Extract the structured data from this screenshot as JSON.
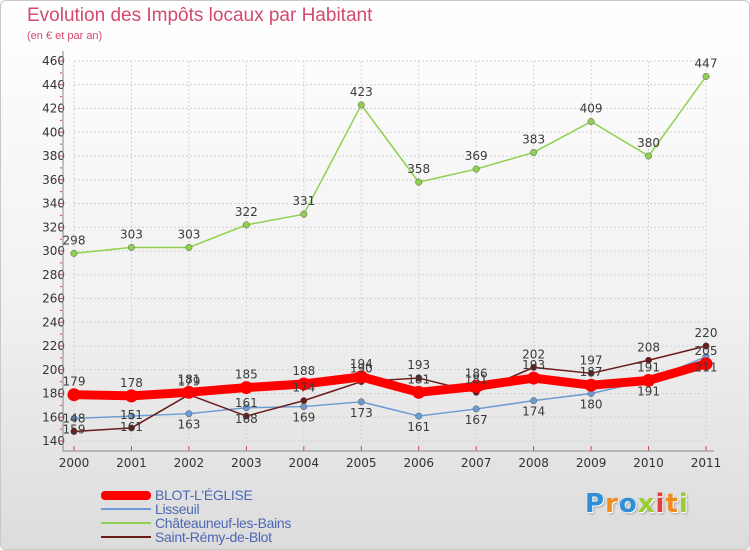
{
  "header": {
    "title": "Evolution des Impôts locaux par Habitant",
    "subtitle": "(en € et par an)"
  },
  "logo": {
    "text": "Proxiti",
    "colors": [
      "#2e8fd8",
      "#f08c1e",
      "#2e8fd8",
      "#9acd32",
      "#e23c3c",
      "#f08c1e",
      "#9acd32"
    ]
  },
  "chart_data": {
    "type": "line",
    "x": [
      "2000",
      "2001",
      "2002",
      "2003",
      "2004",
      "2005",
      "2006",
      "2007",
      "2008",
      "2009",
      "2010",
      "2011"
    ],
    "ylim": [
      140,
      460
    ],
    "yticks": [
      140,
      160,
      180,
      200,
      220,
      240,
      260,
      280,
      300,
      320,
      340,
      360,
      380,
      400,
      420,
      440,
      460
    ],
    "grid": true,
    "legend_position": "bottom-left",
    "series": [
      {
        "name": "BLOT-L'ÉGLISE",
        "color": "#ff0000",
        "values": [
          179,
          178,
          181,
          185,
          188,
          194,
          181,
          186,
          193,
          187,
          191,
          205
        ]
      },
      {
        "name": "Lisseuil",
        "color": "#6b9bd2",
        "values": [
          159,
          161,
          163,
          168,
          169,
          173,
          161,
          167,
          174,
          180,
          191,
          211
        ]
      },
      {
        "name": "Châteauneuf-les-Bains",
        "color": "#8fd14f",
        "values": [
          298,
          303,
          303,
          322,
          331,
          423,
          358,
          369,
          383,
          409,
          380,
          447
        ]
      },
      {
        "name": "Saint-Rémy-de-Blot",
        "color": "#6b1a1a",
        "values": [
          148,
          151,
          179,
          161,
          174,
          190,
          193,
          181,
          202,
          197,
          208,
          220
        ]
      }
    ]
  }
}
